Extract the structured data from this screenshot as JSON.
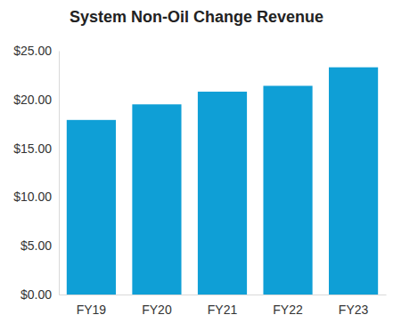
{
  "chart_data": {
    "type": "bar",
    "title": "System Non-Oil Change Revenue",
    "categories": [
      "FY19",
      "FY20",
      "FY21",
      "FY22",
      "FY23"
    ],
    "values": [
      17.9,
      19.5,
      20.8,
      21.4,
      23.3
    ],
    "color": "#0f9fd6",
    "ylim": [
      0,
      25
    ],
    "yticks": [
      {
        "value": 0,
        "label": "$0.00"
      },
      {
        "value": 5,
        "label": "$5.00"
      },
      {
        "value": 10,
        "label": "$10.00"
      },
      {
        "value": 15,
        "label": "$15.00"
      },
      {
        "value": 20,
        "label": "$20.00"
      },
      {
        "value": 25,
        "label": "$25.00"
      }
    ],
    "grid": false
  }
}
